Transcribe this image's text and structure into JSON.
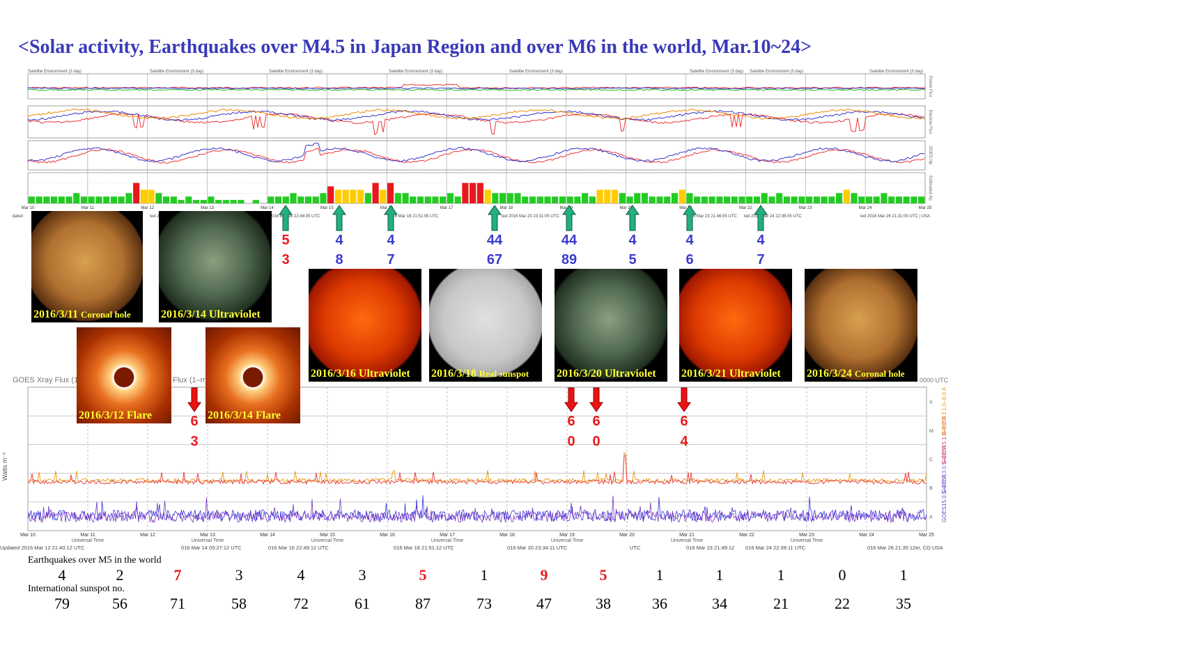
{
  "title": "<Solar activity, Earthquakes over M4.5 in Japan Region and over M6 in the world, Mar.10~24>",
  "colors": {
    "title": "#3a3ab8",
    "green": "#22cc22",
    "yellow": "#ffcc00",
    "red": "#e8191d",
    "arrow_green": "#21b07e",
    "caption": "#ffff33"
  },
  "upper_panel": {
    "panel_header": "Satellite Environment (3 day)",
    "right_labels": [
      "Proton Flux",
      "Electron Flux",
      "GOES Hp",
      "Estimated Kp"
    ],
    "date_labels": [
      "Mar 10",
      "Mar 11",
      "Mar 12",
      "Mar 13",
      "Mar 14",
      "Mar 15",
      "Mar 16",
      "Mar 17",
      "Mar 18",
      "Mar 19",
      "Mar 20",
      "Mar 21",
      "Mar 22",
      "Mar 23",
      "Mar 24",
      "Mar 25"
    ],
    "updated": [
      "Updated",
      "ted 20",
      "016 Mar 16 22:46:05 UTC",
      "016 Mar 18 21:51:05 UTC",
      "ted 2016 Mar 20 23:31:05 UTC",
      "2016 Mar 23 21:46:05 UTC",
      "ted 2016 Mar 24 22:36:05 UTC",
      "ted 2016 Mar 26 21:31:05 UTC | USA"
    ]
  },
  "japan_quakes": [
    {
      "top": "5",
      "bottom": "3",
      "color": "red"
    },
    {
      "top": "4",
      "bottom": "8",
      "color": "blue"
    },
    {
      "top": "4",
      "bottom": "7",
      "color": "blue"
    },
    {
      "top": "44",
      "bottom": "67",
      "color": "blue"
    },
    {
      "top": "44",
      "bottom": "89",
      "color": "blue"
    },
    {
      "top": "4",
      "bottom": "5",
      "color": "blue"
    },
    {
      "top": "4",
      "bottom": "6",
      "color": "blue"
    },
    {
      "top": "4",
      "bottom": "7",
      "color": "blue"
    }
  ],
  "world_quakes": [
    {
      "top": "6",
      "bottom": "3"
    },
    {
      "top": "6",
      "bottom": "0"
    },
    {
      "top": "6",
      "bottom": "0"
    },
    {
      "top": "6",
      "bottom": "4"
    }
  ],
  "sun_images": [
    {
      "date": "2016/3/11",
      "label": "Coronal hole",
      "kind": "coronal"
    },
    {
      "date": "2016/3/14",
      "label": "Ultraviolet",
      "kind": "uv-green"
    },
    {
      "date": "2016/3/12",
      "label": "Flare",
      "kind": "flare"
    },
    {
      "date": "2016/3/14",
      "label": "Flare",
      "kind": "flare"
    },
    {
      "date": "2016/3/16",
      "label": "Ultraviolet",
      "kind": "uv-red"
    },
    {
      "date": "2016/3/18",
      "label": "Real sunspot",
      "kind": "white"
    },
    {
      "date": "2016/3/20",
      "label": "Ultraviolet",
      "kind": "uv-green"
    },
    {
      "date": "2016/3/21",
      "label": "Ultraviolet",
      "kind": "uv-red"
    },
    {
      "date": "2016/3/24",
      "label": "Coronal hole",
      "kind": "coronal"
    }
  ],
  "xray_panel": {
    "title_fragments": [
      "GOES Xray Flux (1",
      "Flux (1–m",
      "0000 UTC"
    ],
    "ylabel": "Watts m⁻²",
    "right_labels": [
      "GOES15 0.5–4.0 A",
      "GOES13 0.5–4.0 A",
      "GOES15 1.0–8.0 A",
      "GOES13 1.0–8.0 A"
    ],
    "class_labels": [
      "X",
      "M",
      "C",
      "B",
      "A"
    ],
    "date_labels": [
      "Mar 10",
      "Mar 11",
      "Mar 12",
      "Mar 13",
      "Mar 14",
      "Mar 15",
      "Mar 16",
      "Mar 17",
      "Mar 18",
      "Mar 19",
      "Mar 20",
      "Mar 21",
      "Mar 22",
      "Mar 23",
      "Mar 24",
      "Mar 25"
    ],
    "axis_title": "Universal Time",
    "updated": [
      "Updated 2016 Mar 12 21:40:12 UTC",
      "016 Mar 14 05:27:12 UTC",
      "016 Mar 16 22:49:12 UTC",
      "016 Mar 18 21:51:12 UTC",
      "016 Mar 20 23:34:11 UTC",
      "UTC",
      "016 Mar 23 21:49:12",
      "016 Mar 24 22:39:11 UTC",
      "016 Mar 26 21:35:12er, CO USA"
    ]
  },
  "table": {
    "earthquake_label": "Earthquakes over M5 in the world",
    "sunspot_label": "International sunspot no.",
    "earthquakes": [
      "4",
      "2",
      "7",
      "3",
      "4",
      "3",
      "5",
      "1",
      "9",
      "5",
      "1",
      "1",
      "1",
      "0",
      "1"
    ],
    "earthquake_highlight": [
      false,
      false,
      true,
      false,
      false,
      false,
      true,
      false,
      true,
      true,
      false,
      false,
      false,
      false,
      false
    ],
    "sunspots": [
      "79",
      "56",
      "71",
      "58",
      "72",
      "61",
      "87",
      "73",
      "47",
      "38",
      "36",
      "34",
      "21",
      "22",
      "35"
    ]
  },
  "chart_data": [
    {
      "type": "bar",
      "title": "Estimated Kp",
      "categories": [
        "Mar 10",
        "Mar 11",
        "Mar 12",
        "Mar 13",
        "Mar 14",
        "Mar 15",
        "Mar 16",
        "Mar 17",
        "Mar 18",
        "Mar 19",
        "Mar 20",
        "Mar 21",
        "Mar 22",
        "Mar 23",
        "Mar 24"
      ],
      "values_3h": [
        2,
        2,
        2,
        2,
        2,
        2,
        3,
        2,
        2,
        2,
        2,
        2,
        2,
        3,
        6,
        4,
        4,
        3,
        2,
        2,
        1,
        2,
        1,
        1,
        2,
        1,
        1,
        1,
        1,
        0,
        1,
        0,
        2,
        2,
        2,
        3,
        2,
        2,
        2,
        3,
        5,
        4,
        4,
        4,
        4,
        3,
        6,
        4,
        6,
        3,
        3,
        2,
        2,
        2,
        2,
        2,
        3,
        2,
        6,
        6,
        6,
        4,
        3,
        3,
        3,
        3,
        2,
        2,
        2,
        2,
        2,
        2,
        2,
        2,
        3,
        2,
        4,
        4,
        4,
        3,
        2,
        3,
        3,
        2,
        2,
        2,
        3,
        4,
        3,
        2,
        2,
        2,
        2,
        2,
        2,
        2,
        2,
        2,
        3,
        2,
        3,
        2,
        2,
        2,
        2,
        2,
        2,
        2,
        3,
        4,
        3,
        2,
        2,
        2,
        3,
        2,
        2,
        2,
        2,
        2
      ],
      "ylim": [
        0,
        9
      ]
    },
    {
      "type": "table",
      "title": "Earthquakes over M5 in the world / International sunspot no.",
      "categories": [
        "Mar 10",
        "Mar 11",
        "Mar 12",
        "Mar 13",
        "Mar 14",
        "Mar 15",
        "Mar 16",
        "Mar 17",
        "Mar 18",
        "Mar 19",
        "Mar 20",
        "Mar 21",
        "Mar 22",
        "Mar 23",
        "Mar 24"
      ],
      "series": [
        {
          "name": "Earthquakes over M5 in the world",
          "values": [
            4,
            2,
            7,
            3,
            4,
            3,
            5,
            1,
            9,
            5,
            1,
            1,
            1,
            0,
            1
          ]
        },
        {
          "name": "International sunspot no.",
          "values": [
            79,
            56,
            71,
            58,
            72,
            61,
            87,
            73,
            47,
            38,
            36,
            34,
            21,
            22,
            35
          ]
        }
      ]
    }
  ]
}
